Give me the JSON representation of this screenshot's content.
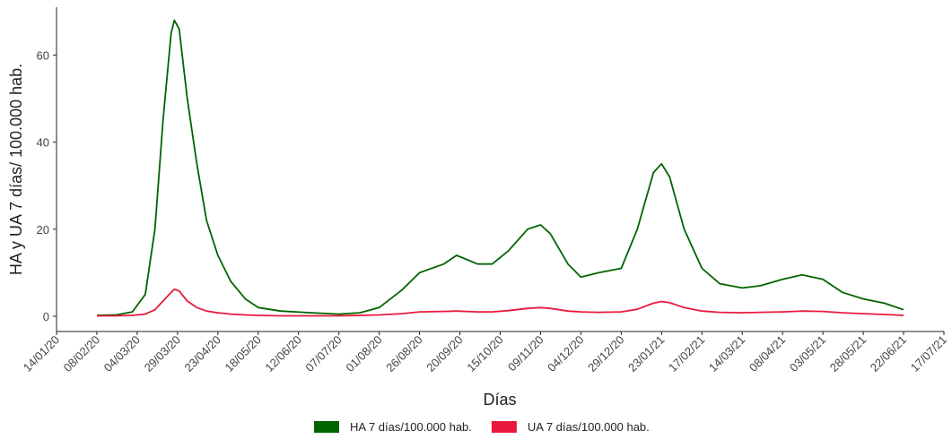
{
  "chart_data": {
    "type": "line",
    "x_label": "Días",
    "y_label": "HA y UA 7 días/ 100.000 hab.",
    "x": [
      "08/02/20",
      "20/02/20",
      "01/03/20",
      "09/03/20",
      "15/03/20",
      "20/03/20",
      "25/03/20",
      "27/03/20",
      "30/03/20",
      "04/04/20",
      "10/04/20",
      "16/04/20",
      "23/04/20",
      "01/05/20",
      "10/05/20",
      "18/05/20",
      "01/06/20",
      "20/06/20",
      "07/07/20",
      "20/07/20",
      "01/08/20",
      "15/08/20",
      "26/08/20",
      "10/09/20",
      "18/09/20",
      "01/10/20",
      "10/10/20",
      "20/10/20",
      "01/11/20",
      "09/11/20",
      "15/11/20",
      "26/11/20",
      "04/12/20",
      "15/12/20",
      "29/12/20",
      "08/01/21",
      "18/01/21",
      "23/01/21",
      "28/01/21",
      "06/02/21",
      "17/02/21",
      "28/02/21",
      "14/03/21",
      "25/03/21",
      "08/04/21",
      "20/04/21",
      "03/05/21",
      "15/05/21",
      "28/05/21",
      "10/06/21",
      "22/06/21"
    ],
    "series": [
      {
        "name": "HA 7 días/100.000 hab.",
        "color": "#006400",
        "values": [
          0.2,
          0.3,
          1,
          5,
          20,
          45,
          65,
          68,
          66,
          50,
          35,
          22,
          14,
          8,
          4,
          2,
          1.2,
          0.8,
          0.5,
          0.8,
          2,
          6,
          10,
          12,
          14,
          12,
          12,
          15,
          20,
          21,
          19,
          12,
          9,
          10,
          11,
          20,
          33,
          35,
          32,
          20,
          11,
          7.5,
          6.5,
          7,
          8.5,
          9.5,
          8.5,
          5.5,
          4,
          3,
          1.5
        ]
      },
      {
        "name": "UA 7 días/100.000 hab.",
        "color": "#e8193c",
        "values": [
          0.1,
          0.1,
          0.2,
          0.5,
          1.5,
          3.5,
          5.5,
          6.2,
          5.8,
          3.5,
          2,
          1.2,
          0.8,
          0.5,
          0.3,
          0.2,
          0.1,
          0.1,
          0.1,
          0.2,
          0.3,
          0.6,
          1,
          1.1,
          1.2,
          1,
          1,
          1.3,
          1.8,
          2,
          1.8,
          1.2,
          1,
          0.9,
          1,
          1.6,
          3,
          3.4,
          3.1,
          2,
          1.2,
          0.9,
          0.8,
          0.9,
          1,
          1.2,
          1.1,
          0.8,
          0.6,
          0.4,
          0.2
        ]
      }
    ],
    "xlim": [
      "14/01/20",
      "17/07/21"
    ],
    "xticks": [
      "14/01/20",
      "08/02/20",
      "04/03/20",
      "29/03/20",
      "23/04/20",
      "18/05/20",
      "12/06/20",
      "07/07/20",
      "01/08/20",
      "26/08/20",
      "20/09/20",
      "15/10/20",
      "09/11/20",
      "04/12/20",
      "29/12/20",
      "23/01/21",
      "17/02/21",
      "14/03/21",
      "08/04/21",
      "03/05/21",
      "28/05/21",
      "22/06/21",
      "17/07/21"
    ],
    "ylim": [
      -3.5,
      71
    ],
    "yticks": [
      0,
      20,
      40,
      60
    ],
    "legend": "bottom"
  }
}
